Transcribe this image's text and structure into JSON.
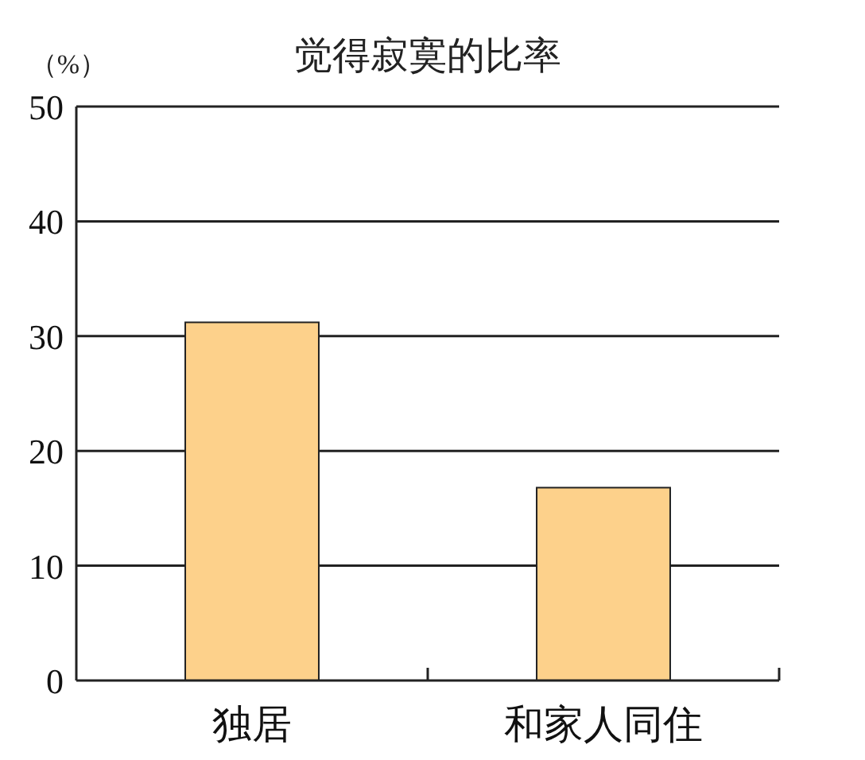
{
  "chart_data": {
    "type": "bar",
    "title": "觉得寂寞的比率",
    "ylabel": "（%）",
    "categories": [
      "独居",
      "和家人同住"
    ],
    "values": [
      31.2,
      16.8
    ],
    "color": "#fdd18b",
    "ylim": [
      0,
      50
    ],
    "yticks": [
      0,
      10,
      20,
      30,
      40,
      50
    ],
    "grid": "y"
  }
}
